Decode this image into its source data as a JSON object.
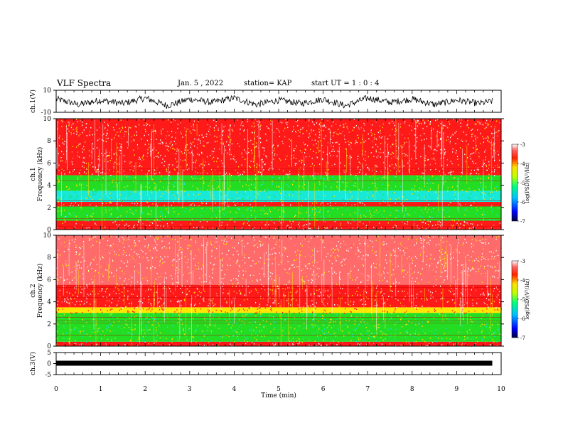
{
  "header": {
    "title": "VLF Spectra",
    "date": "Jan. 5 , 2022",
    "station": "station= KAP",
    "start": "start UT =  1 : 0  : 4"
  },
  "colors": {
    "red": "#ff1a1a",
    "yellow": "#ffe600",
    "green": "#22dd22",
    "cyan": "#18e8d8",
    "white": "#ffffff",
    "trace": "#000000"
  },
  "chart_data": [
    {
      "type": "line",
      "panel": "ch1-waveform",
      "ylabel": "ch.1(V)",
      "ylim": [
        -10,
        10
      ],
      "yticks": [
        "10",
        "-10"
      ],
      "x": [
        0,
        0.5,
        1,
        1.5,
        2,
        2.5,
        3,
        3.5,
        4,
        4.5,
        5,
        5.5,
        6,
        6.5,
        7,
        7.5,
        8,
        8.5,
        9,
        9.5,
        9.8
      ],
      "y": [
        2,
        -3,
        1,
        -2,
        3,
        -4,
        2,
        -1,
        3,
        -3,
        1,
        -2,
        2,
        -4,
        3,
        -1,
        2,
        -3,
        1,
        -2,
        0
      ]
    },
    {
      "type": "heatmap",
      "panel": "ch1-spectrogram",
      "ylabel": "ch.1\nFrequency (kHz)",
      "yticks": [
        "0",
        "2",
        "4",
        "6",
        "8",
        "10"
      ],
      "ylim": [
        0,
        10
      ],
      "colorbar": {
        "label": "log(PSD)(V²/Hz)",
        "ticks": [
          "-3",
          "-4",
          "-5",
          "-6",
          "-7"
        ],
        "range": [
          -7,
          -3
        ]
      },
      "bands": [
        {
          "from": 0,
          "to": 0.8,
          "level": "red"
        },
        {
          "from": 0.8,
          "to": 2.1,
          "level": "green"
        },
        {
          "from": 2.1,
          "to": 2.5,
          "level": "red"
        },
        {
          "from": 2.5,
          "to": 3.5,
          "level": "cyan"
        },
        {
          "from": 3.5,
          "to": 4.9,
          "level": "green"
        },
        {
          "from": 4.9,
          "to": 10,
          "level": "red"
        }
      ]
    },
    {
      "type": "heatmap",
      "panel": "ch2-spectrogram",
      "ylabel": "ch.2\nFrequency (kHz)",
      "yticks": [
        "0",
        "2",
        "4",
        "6",
        "8",
        "10"
      ],
      "ylim": [
        0,
        10
      ],
      "colorbar": {
        "label": "log(PSD)(V²/Hz)",
        "ticks": [
          "-3",
          "-4",
          "-5",
          "-6",
          "-7"
        ],
        "range": [
          -7,
          -3
        ]
      },
      "bands": [
        {
          "from": 0,
          "to": 0.4,
          "level": "red"
        },
        {
          "from": 0.4,
          "to": 3.0,
          "level": "green"
        },
        {
          "from": 3.0,
          "to": 3.5,
          "level": "yellow"
        },
        {
          "from": 3.5,
          "to": 5.5,
          "level": "red"
        },
        {
          "from": 5.5,
          "to": 10,
          "level": "lightred"
        }
      ]
    },
    {
      "type": "line",
      "panel": "ch3-waveform",
      "ylabel": "ch.3(V)",
      "ylim": [
        -5,
        5
      ],
      "yticks": [
        "5",
        "0",
        "-5"
      ],
      "value": 0
    }
  ],
  "xaxis": {
    "label": "Time (min)",
    "ticks": [
      "0",
      "1",
      "2",
      "3",
      "4",
      "5",
      "6",
      "7",
      "8",
      "9",
      "10"
    ],
    "xlim": [
      0,
      10
    ]
  }
}
